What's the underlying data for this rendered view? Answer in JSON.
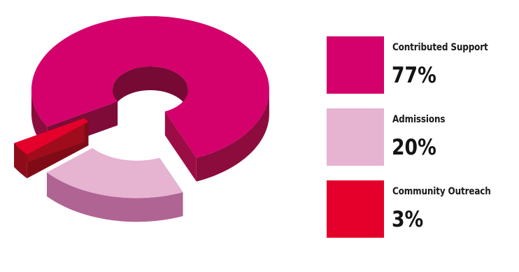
{
  "chart_data": {
    "type": "pie",
    "style": "3d-exploded-donut",
    "title": "",
    "legend": "right",
    "slices": [
      {
        "label": "Contributed Support",
        "value": 77,
        "display": "77%",
        "color": "#d4006b",
        "side_color": "#8c0c3e"
      },
      {
        "label": "Admissions",
        "value": 20,
        "display": "20%",
        "color": "#e6b3d1",
        "side_color": "#b06493"
      },
      {
        "label": "Community Outreach",
        "value": 3,
        "display": "3%",
        "color": "#e4002b",
        "side_color": "#8e0c1a"
      }
    ]
  }
}
